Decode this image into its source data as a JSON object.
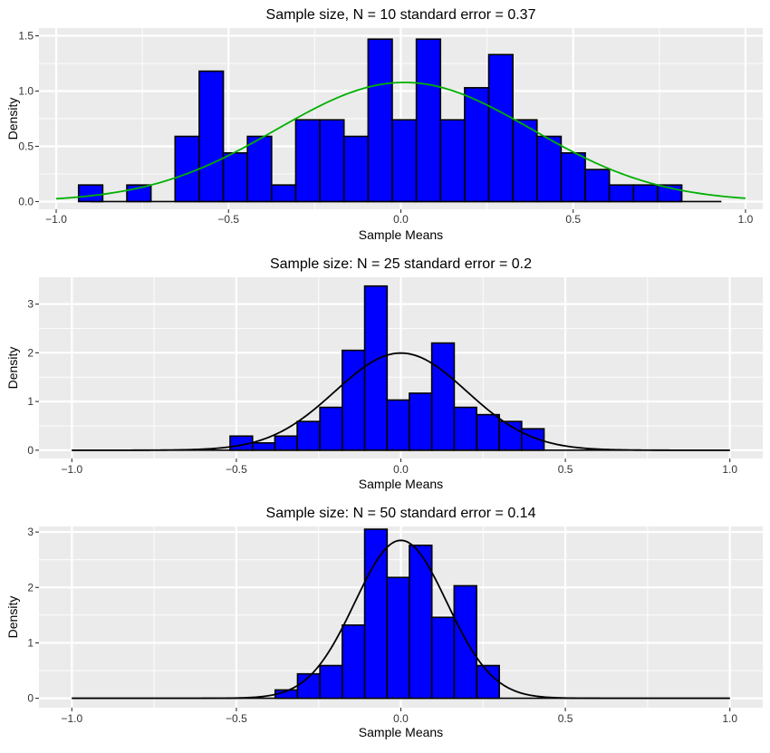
{
  "colors": {
    "bar_fill": "#0000ff",
    "bar_edge": "#000000",
    "panel": "#ebebeb"
  },
  "chart_data": [
    {
      "type": "bar",
      "title": "Sample size, N = 10 standard error = 0.37",
      "xlabel": "Sample Means",
      "ylabel": "Density",
      "xlim": [
        -1.05,
        1.05
      ],
      "ylim": [
        -0.07,
        1.57
      ],
      "xticks": [
        -1.0,
        -0.5,
        0.0,
        0.5,
        1.0
      ],
      "xtick_labels": [
        "−1.0",
        "−0.5",
        "0.0",
        "0.5",
        "1.0"
      ],
      "yticks": [
        0.0,
        0.5,
        1.0,
        1.5
      ],
      "ytick_labels": [
        "0.0",
        "0.5",
        "1.0",
        "1.5"
      ],
      "baseline": [
        -0.9,
        0.93
      ],
      "bin_width": 0.07,
      "bins": [
        {
          "x0": -0.935,
          "value": 0.15
        },
        {
          "x0": -0.865,
          "value": 0.0
        },
        {
          "x0": -0.795,
          "value": 0.15
        },
        {
          "x0": -0.725,
          "value": 0.0
        },
        {
          "x0": -0.655,
          "value": 0.59
        },
        {
          "x0": -0.585,
          "value": 1.18
        },
        {
          "x0": -0.515,
          "value": 0.44
        },
        {
          "x0": -0.445,
          "value": 0.59
        },
        {
          "x0": -0.375,
          "value": 0.15
        },
        {
          "x0": -0.305,
          "value": 0.74
        },
        {
          "x0": -0.235,
          "value": 0.74
        },
        {
          "x0": -0.165,
          "value": 0.59
        },
        {
          "x0": -0.095,
          "value": 1.47
        },
        {
          "x0": -0.025,
          "value": 0.74
        },
        {
          "x0": 0.045,
          "value": 1.47
        },
        {
          "x0": 0.115,
          "value": 0.74
        },
        {
          "x0": 0.185,
          "value": 1.03
        },
        {
          "x0": 0.255,
          "value": 1.33
        },
        {
          "x0": 0.325,
          "value": 0.74
        },
        {
          "x0": 0.395,
          "value": 0.59
        },
        {
          "x0": 0.465,
          "value": 0.44
        },
        {
          "x0": 0.535,
          "value": 0.29
        },
        {
          "x0": 0.605,
          "value": 0.15
        },
        {
          "x0": 0.675,
          "value": 0.15
        },
        {
          "x0": 0.745,
          "value": 0.15
        }
      ],
      "curve": {
        "mean": 0.01,
        "sd": 0.37,
        "x_range": [
          -1.0,
          1.0
        ],
        "color": "#00b000"
      }
    },
    {
      "type": "bar",
      "title": "Sample size: N = 25 standard error = 0.2",
      "xlabel": "Sample Means",
      "ylabel": "Density",
      "xlim": [
        -1.1,
        1.1
      ],
      "ylim": [
        -0.17,
        3.55
      ],
      "xticks": [
        -1.0,
        -0.5,
        0.0,
        0.5,
        1.0
      ],
      "xtick_labels": [
        "−1.0",
        "−0.5",
        "0.0",
        "0.5",
        "1.0"
      ],
      "yticks": [
        0,
        1,
        2,
        3
      ],
      "ytick_labels": [
        "0",
        "1",
        "2",
        "3"
      ],
      "baseline": [
        -1.0,
        1.0
      ],
      "bin_width": 0.0682,
      "bins": [
        {
          "x0": -0.519,
          "value": 0.29
        },
        {
          "x0": -0.451,
          "value": 0.15
        },
        {
          "x0": -0.383,
          "value": 0.29
        },
        {
          "x0": -0.315,
          "value": 0.59
        },
        {
          "x0": -0.246,
          "value": 0.88
        },
        {
          "x0": -0.178,
          "value": 2.05
        },
        {
          "x0": -0.11,
          "value": 3.37
        },
        {
          "x0": -0.042,
          "value": 1.03
        },
        {
          "x0": 0.026,
          "value": 1.17
        },
        {
          "x0": 0.094,
          "value": 2.2
        },
        {
          "x0": 0.162,
          "value": 0.88
        },
        {
          "x0": 0.231,
          "value": 0.73
        },
        {
          "x0": 0.299,
          "value": 0.59
        },
        {
          "x0": 0.367,
          "value": 0.44
        }
      ],
      "curve": {
        "mean": 0.0,
        "sd": 0.2,
        "x_range": [
          -1.0,
          1.0
        ],
        "color": "#000000"
      }
    },
    {
      "type": "bar",
      "title": "Sample size: N = 50 standard error = 0.14",
      "xlabel": "Sample Means",
      "ylabel": "Density",
      "xlim": [
        -1.1,
        1.1
      ],
      "ylim": [
        -0.17,
        3.1
      ],
      "xticks": [
        -1.0,
        -0.5,
        0.0,
        0.5,
        1.0
      ],
      "xtick_labels": [
        "−1.0",
        "−0.5",
        "0.0",
        "0.5",
        "1.0"
      ],
      "yticks": [
        0,
        1,
        2,
        3
      ],
      "ytick_labels": [
        "0",
        "1",
        "2",
        "3"
      ],
      "baseline": [
        -1.0,
        1.0
      ],
      "bin_width": 0.0682,
      "bins": [
        {
          "x0": -0.382,
          "value": 0.15
        },
        {
          "x0": -0.314,
          "value": 0.44
        },
        {
          "x0": -0.246,
          "value": 0.59
        },
        {
          "x0": -0.178,
          "value": 1.32
        },
        {
          "x0": -0.11,
          "value": 3.05
        },
        {
          "x0": -0.042,
          "value": 2.18
        },
        {
          "x0": 0.026,
          "value": 2.76
        },
        {
          "x0": 0.094,
          "value": 1.46
        },
        {
          "x0": 0.162,
          "value": 2.03
        },
        {
          "x0": 0.231,
          "value": 0.59
        }
      ],
      "curve": {
        "mean": 0.0,
        "sd": 0.14,
        "x_range": [
          -1.0,
          1.0
        ],
        "color": "#000000"
      }
    }
  ]
}
